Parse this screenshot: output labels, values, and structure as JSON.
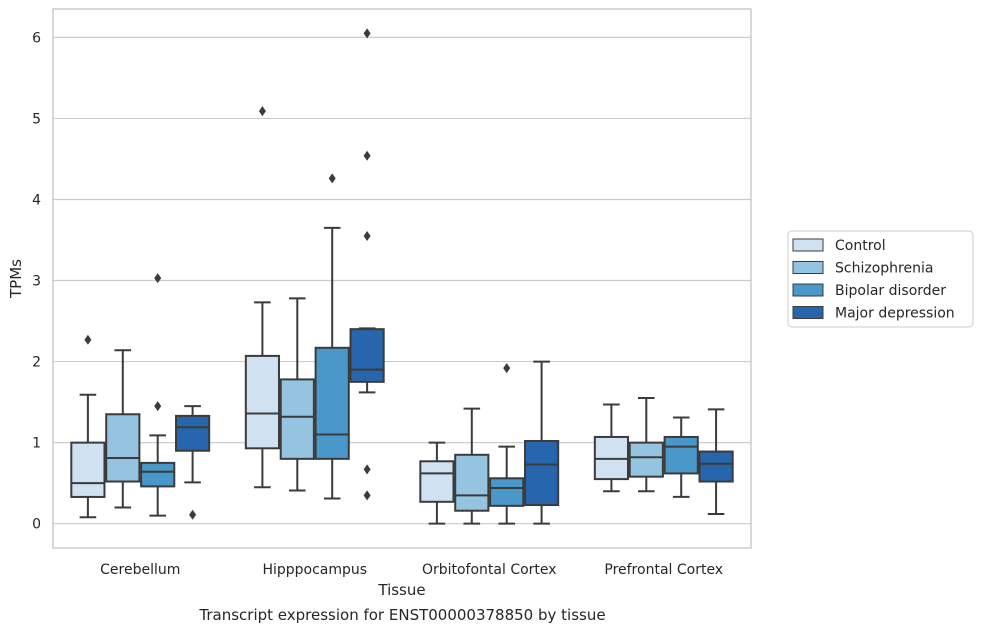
{
  "chart_data": {
    "type": "boxplot",
    "xlabel": "Tissue",
    "ylabel": "TPMs",
    "caption": "Transcript expression for ENST00000378850 by tissue",
    "ylim": [
      -0.3,
      6.35
    ],
    "yticks": [
      0,
      1,
      2,
      3,
      4,
      5,
      6
    ],
    "grid": true,
    "legend_placement": "center-right",
    "categories": [
      "Cerebellum",
      "Hipppocampus",
      "Orbitofontal Cortex",
      "Prefrontal Cortex"
    ],
    "series": [
      {
        "name": "Control",
        "color": "#d0e1f2",
        "boxes": [
          {
            "whislo": 0.08,
            "q1": 0.33,
            "med": 0.5,
            "q3": 1.0,
            "whishi": 1.59,
            "fliers": [
              2.27
            ]
          },
          {
            "whislo": 0.45,
            "q1": 0.93,
            "med": 1.36,
            "q3": 2.07,
            "whishi": 2.73,
            "fliers": [
              5.09
            ]
          },
          {
            "whislo": 0.0,
            "q1": 0.27,
            "med": 0.62,
            "q3": 0.77,
            "whishi": 1.0,
            "fliers": []
          },
          {
            "whislo": 0.4,
            "q1": 0.55,
            "med": 0.8,
            "q3": 1.07,
            "whishi": 1.47,
            "fliers": []
          }
        ]
      },
      {
        "name": "Schizophrenia",
        "color": "#94c4df",
        "boxes": [
          {
            "whislo": 0.2,
            "q1": 0.52,
            "med": 0.81,
            "q3": 1.35,
            "whishi": 2.14,
            "fliers": []
          },
          {
            "whislo": 0.41,
            "q1": 0.8,
            "med": 1.32,
            "q3": 1.78,
            "whishi": 2.78,
            "fliers": []
          },
          {
            "whislo": 0.0,
            "q1": 0.16,
            "med": 0.35,
            "q3": 0.85,
            "whishi": 1.42,
            "fliers": []
          },
          {
            "whislo": 0.4,
            "q1": 0.58,
            "med": 0.82,
            "q3": 1.0,
            "whishi": 1.55,
            "fliers": []
          }
        ]
      },
      {
        "name": "Bipolar disorder",
        "color": "#4a98c9",
        "boxes": [
          {
            "whislo": 0.1,
            "q1": 0.46,
            "med": 0.64,
            "q3": 0.75,
            "whishi": 1.09,
            "fliers": [
              1.45,
              3.03
            ]
          },
          {
            "whislo": 0.31,
            "q1": 0.8,
            "med": 1.1,
            "q3": 2.17,
            "whishi": 3.65,
            "fliers": [
              4.26
            ]
          },
          {
            "whislo": 0.0,
            "q1": 0.22,
            "med": 0.44,
            "q3": 0.56,
            "whishi": 0.95,
            "fliers": [
              1.92
            ]
          },
          {
            "whislo": 0.33,
            "q1": 0.62,
            "med": 0.95,
            "q3": 1.07,
            "whishi": 1.31,
            "fliers": []
          }
        ]
      },
      {
        "name": "Major depression",
        "color": "#2766ac",
        "boxes": [
          {
            "whislo": 0.51,
            "q1": 0.9,
            "med": 1.19,
            "q3": 1.33,
            "whishi": 1.45,
            "fliers": [
              0.11
            ]
          },
          {
            "whislo": 1.62,
            "q1": 1.75,
            "med": 1.9,
            "q3": 2.4,
            "whishi": 2.41,
            "fliers": [
              0.35,
              0.67,
              3.55,
              4.54,
              6.05
            ]
          },
          {
            "whislo": 0.0,
            "q1": 0.23,
            "med": 0.73,
            "q3": 1.02,
            "whishi": 2.0,
            "fliers": []
          },
          {
            "whislo": 0.12,
            "q1": 0.52,
            "med": 0.74,
            "q3": 0.89,
            "whishi": 1.41,
            "fliers": []
          }
        ]
      }
    ]
  }
}
